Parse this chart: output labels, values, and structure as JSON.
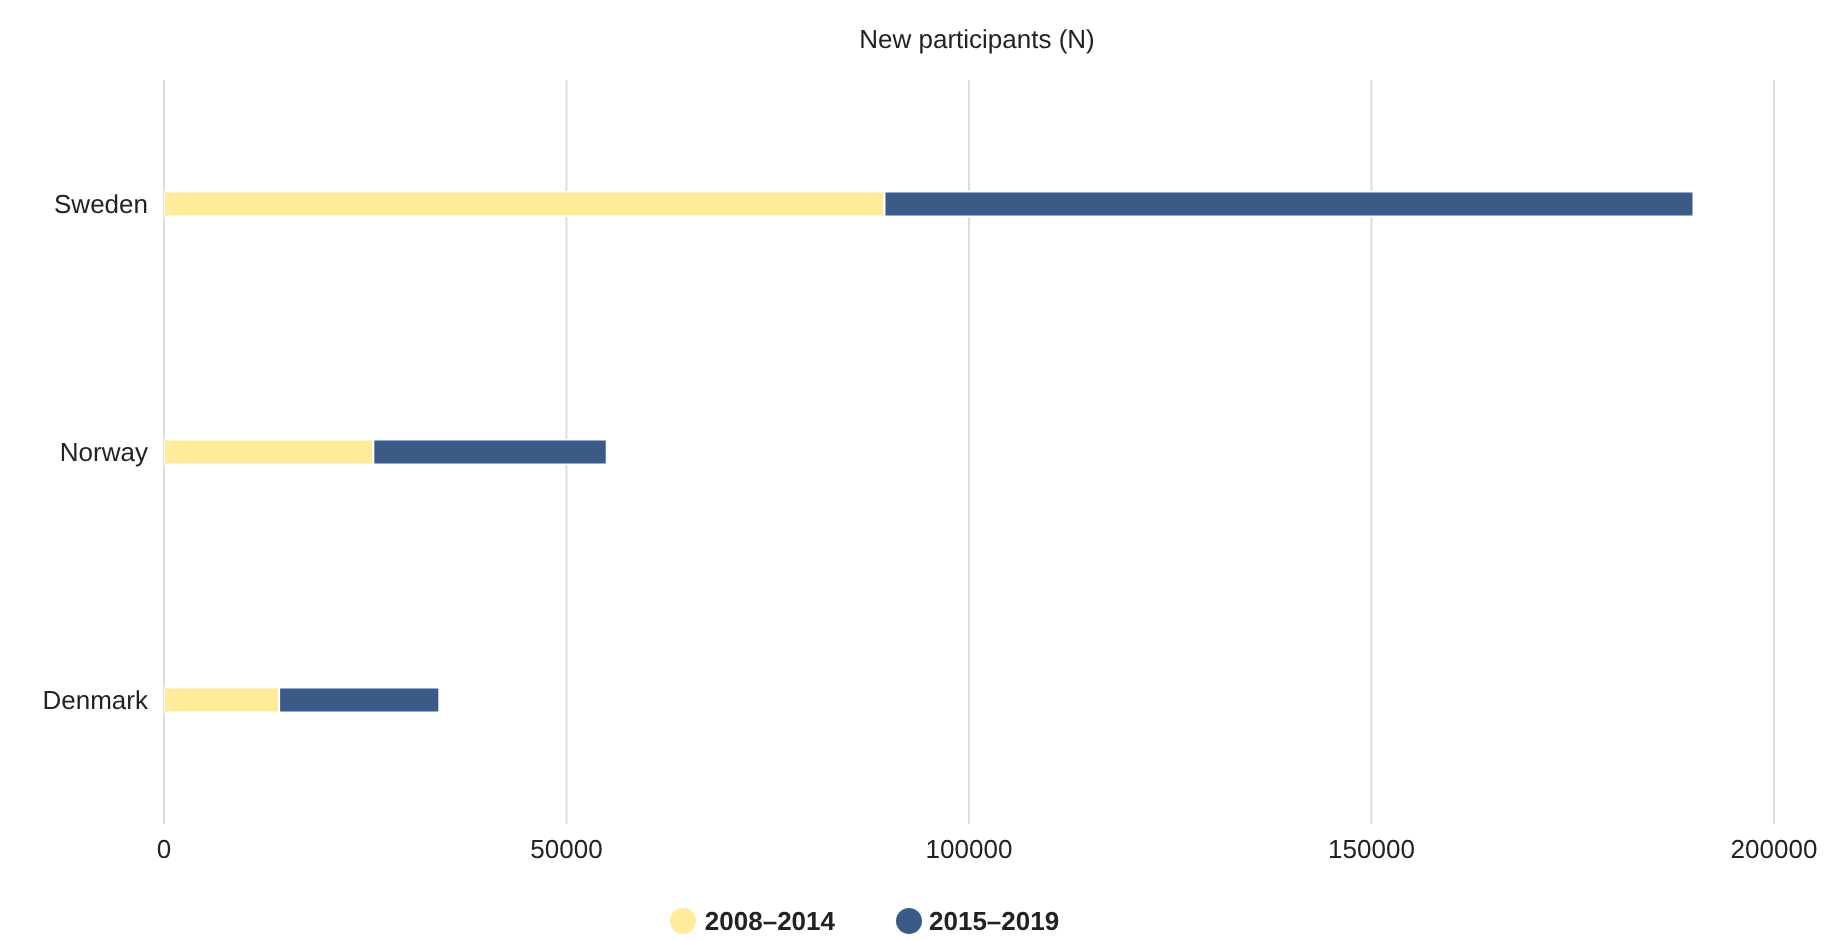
{
  "chart_data": {
    "type": "bar",
    "orientation": "horizontal",
    "stacked": true,
    "title": "New participants (N)",
    "categories": [
      "Sweden",
      "Norway",
      "Denmark"
    ],
    "series": [
      {
        "name": "2008–2014",
        "color": "#ffeb99",
        "values": [
          89500,
          26000,
          14300
        ]
      },
      {
        "name": "2015–2019",
        "color": "#3a5a87",
        "values": [
          100500,
          29000,
          19900
        ]
      }
    ],
    "xlim": [
      0,
      200000
    ],
    "xticks": [
      0,
      50000,
      100000,
      150000,
      200000
    ],
    "grid": "x",
    "legend": "bottom"
  }
}
